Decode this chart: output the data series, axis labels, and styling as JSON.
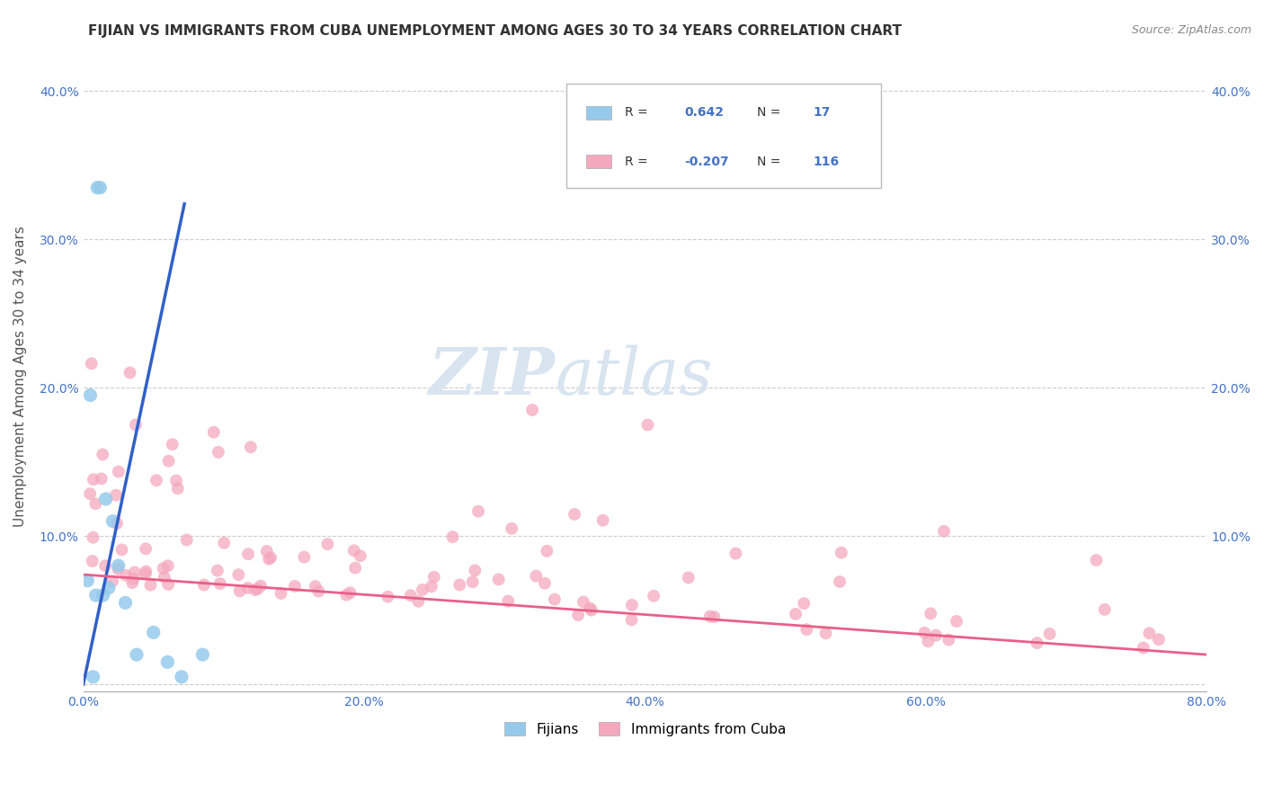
{
  "title": "FIJIAN VS IMMIGRANTS FROM CUBA UNEMPLOYMENT AMONG AGES 30 TO 34 YEARS CORRELATION CHART",
  "source": "Source: ZipAtlas.com",
  "ylabel": "Unemployment Among Ages 30 to 34 years",
  "xlim": [
    0.0,
    0.8
  ],
  "ylim": [
    -0.02,
    0.42
  ],
  "plot_ylim": [
    0.0,
    0.42
  ],
  "xticks": [
    0.0,
    0.1,
    0.2,
    0.3,
    0.4,
    0.5,
    0.6,
    0.7,
    0.8
  ],
  "xticklabels": [
    "0.0%",
    "",
    "20.0%",
    "",
    "40.0%",
    "",
    "60.0%",
    "",
    "80.0%"
  ],
  "yticks": [
    0.0,
    0.1,
    0.2,
    0.3,
    0.4
  ],
  "yticklabels": [
    "",
    "10.0%",
    "20.0%",
    "30.0%",
    "40.0%"
  ],
  "right_yticklabels": [
    "",
    "10.0%",
    "20.0%",
    "30.0%",
    "40.0%"
  ],
  "fijian_color": "#96CAEB",
  "cuba_color": "#F4A8BE",
  "fijian_line_color": "#3060C8",
  "cuba_line_color": "#E8608A",
  "legend_label_fijian": "Fijians",
  "legend_label_cuba": "Immigrants from Cuba",
  "watermark_zip": "ZIP",
  "watermark_atlas": "atlas",
  "background_color": "#ffffff",
  "grid_color": "#cccccc",
  "title_fontsize": 11,
  "axis_fontsize": 11,
  "tick_fontsize": 10,
  "tick_color": "#4472C4",
  "legend_R_color": "#333333",
  "legend_val_color": "#4472C4",
  "source_color": "#888888"
}
